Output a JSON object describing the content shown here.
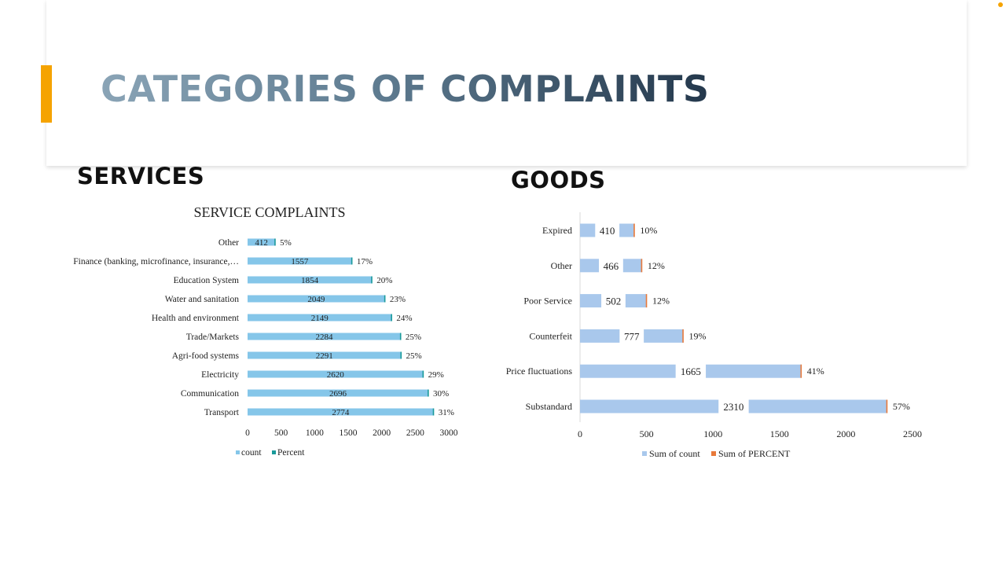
{
  "slide": {
    "title": "CATEGORIES OF COMPLAINTS",
    "services_heading": "SERVICES",
    "goods_heading": "GOODS",
    "accent_color": "#f5a300"
  },
  "chart_data": [
    {
      "id": "services",
      "type": "bar",
      "orientation": "horizontal",
      "title": "SERVICE COMPLAINTS",
      "categories": [
        "Other",
        "Finance (banking, microfinance, insurance,…",
        "Education System",
        "Water and sanitation",
        "Health and environment",
        "Trade/Markets",
        "Agri-food systems",
        "Electricity",
        "Communication",
        "Transport"
      ],
      "series": [
        {
          "name": "count",
          "color": "#85c6e9",
          "values": [
            412,
            1557,
            1854,
            2049,
            2149,
            2284,
            2291,
            2620,
            2696,
            2774
          ]
        },
        {
          "name": "Percent",
          "color": "#1a9a9a",
          "values": [
            5,
            17,
            20,
            23,
            24,
            25,
            25,
            29,
            30,
            31
          ],
          "labels": [
            "5%",
            "17%",
            "20%",
            "23%",
            "24%",
            "25%",
            "25%",
            "29%",
            "30%",
            "31%"
          ]
        }
      ],
      "xlim": [
        0,
        3000
      ],
      "xticks": [
        0,
        500,
        1000,
        1500,
        2000,
        2500,
        3000
      ],
      "legend_position": "bottom",
      "grid": false
    },
    {
      "id": "goods",
      "type": "bar",
      "orientation": "horizontal",
      "title": "",
      "categories": [
        "Expired",
        "Other",
        "Poor Service",
        "Counterfeit",
        "Price fluctuations",
        "Substandard"
      ],
      "series": [
        {
          "name": "Sum of count",
          "color": "#a9c8ec",
          "values": [
            410,
            466,
            502,
            777,
            1665,
            2310
          ]
        },
        {
          "name": "Sum of PERCENT",
          "color": "#e8793a",
          "values": [
            10,
            12,
            12,
            19,
            41,
            57
          ],
          "labels": [
            "10%",
            "12%",
            "12%",
            "19%",
            "41%",
            "57%"
          ]
        }
      ],
      "xlim": [
        0,
        2500
      ],
      "xticks": [
        0,
        500,
        1000,
        1500,
        2000,
        2500
      ],
      "legend_position": "bottom",
      "grid": false
    }
  ]
}
